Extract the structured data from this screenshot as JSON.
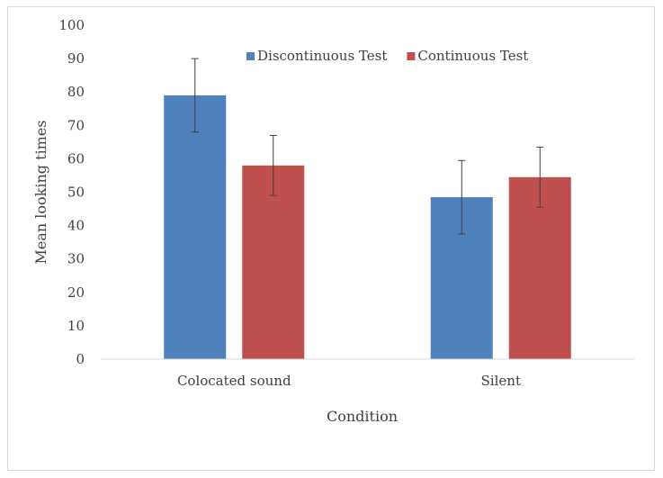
{
  "chart_data": {
    "type": "bar",
    "title": "",
    "xlabel": "Condition",
    "ylabel": "Mean looking times",
    "categories": [
      "Colocated sound",
      "Silent"
    ],
    "ylim": [
      0,
      100
    ],
    "yticks": [
      0,
      10,
      20,
      30,
      40,
      50,
      60,
      70,
      80,
      90,
      100
    ],
    "grid": false,
    "legend_position": "top",
    "series": [
      {
        "name": "Discontinuous Test",
        "color": "#4f81bd",
        "values": [
          79,
          48.5
        ],
        "error_low": [
          68,
          37.5
        ],
        "error_high": [
          90,
          59.5
        ]
      },
      {
        "name": "Continuous Test",
        "color": "#c0504d",
        "values": [
          58,
          54.5
        ],
        "error_low": [
          49,
          45.5
        ],
        "error_high": [
          67,
          63.5
        ]
      }
    ]
  }
}
